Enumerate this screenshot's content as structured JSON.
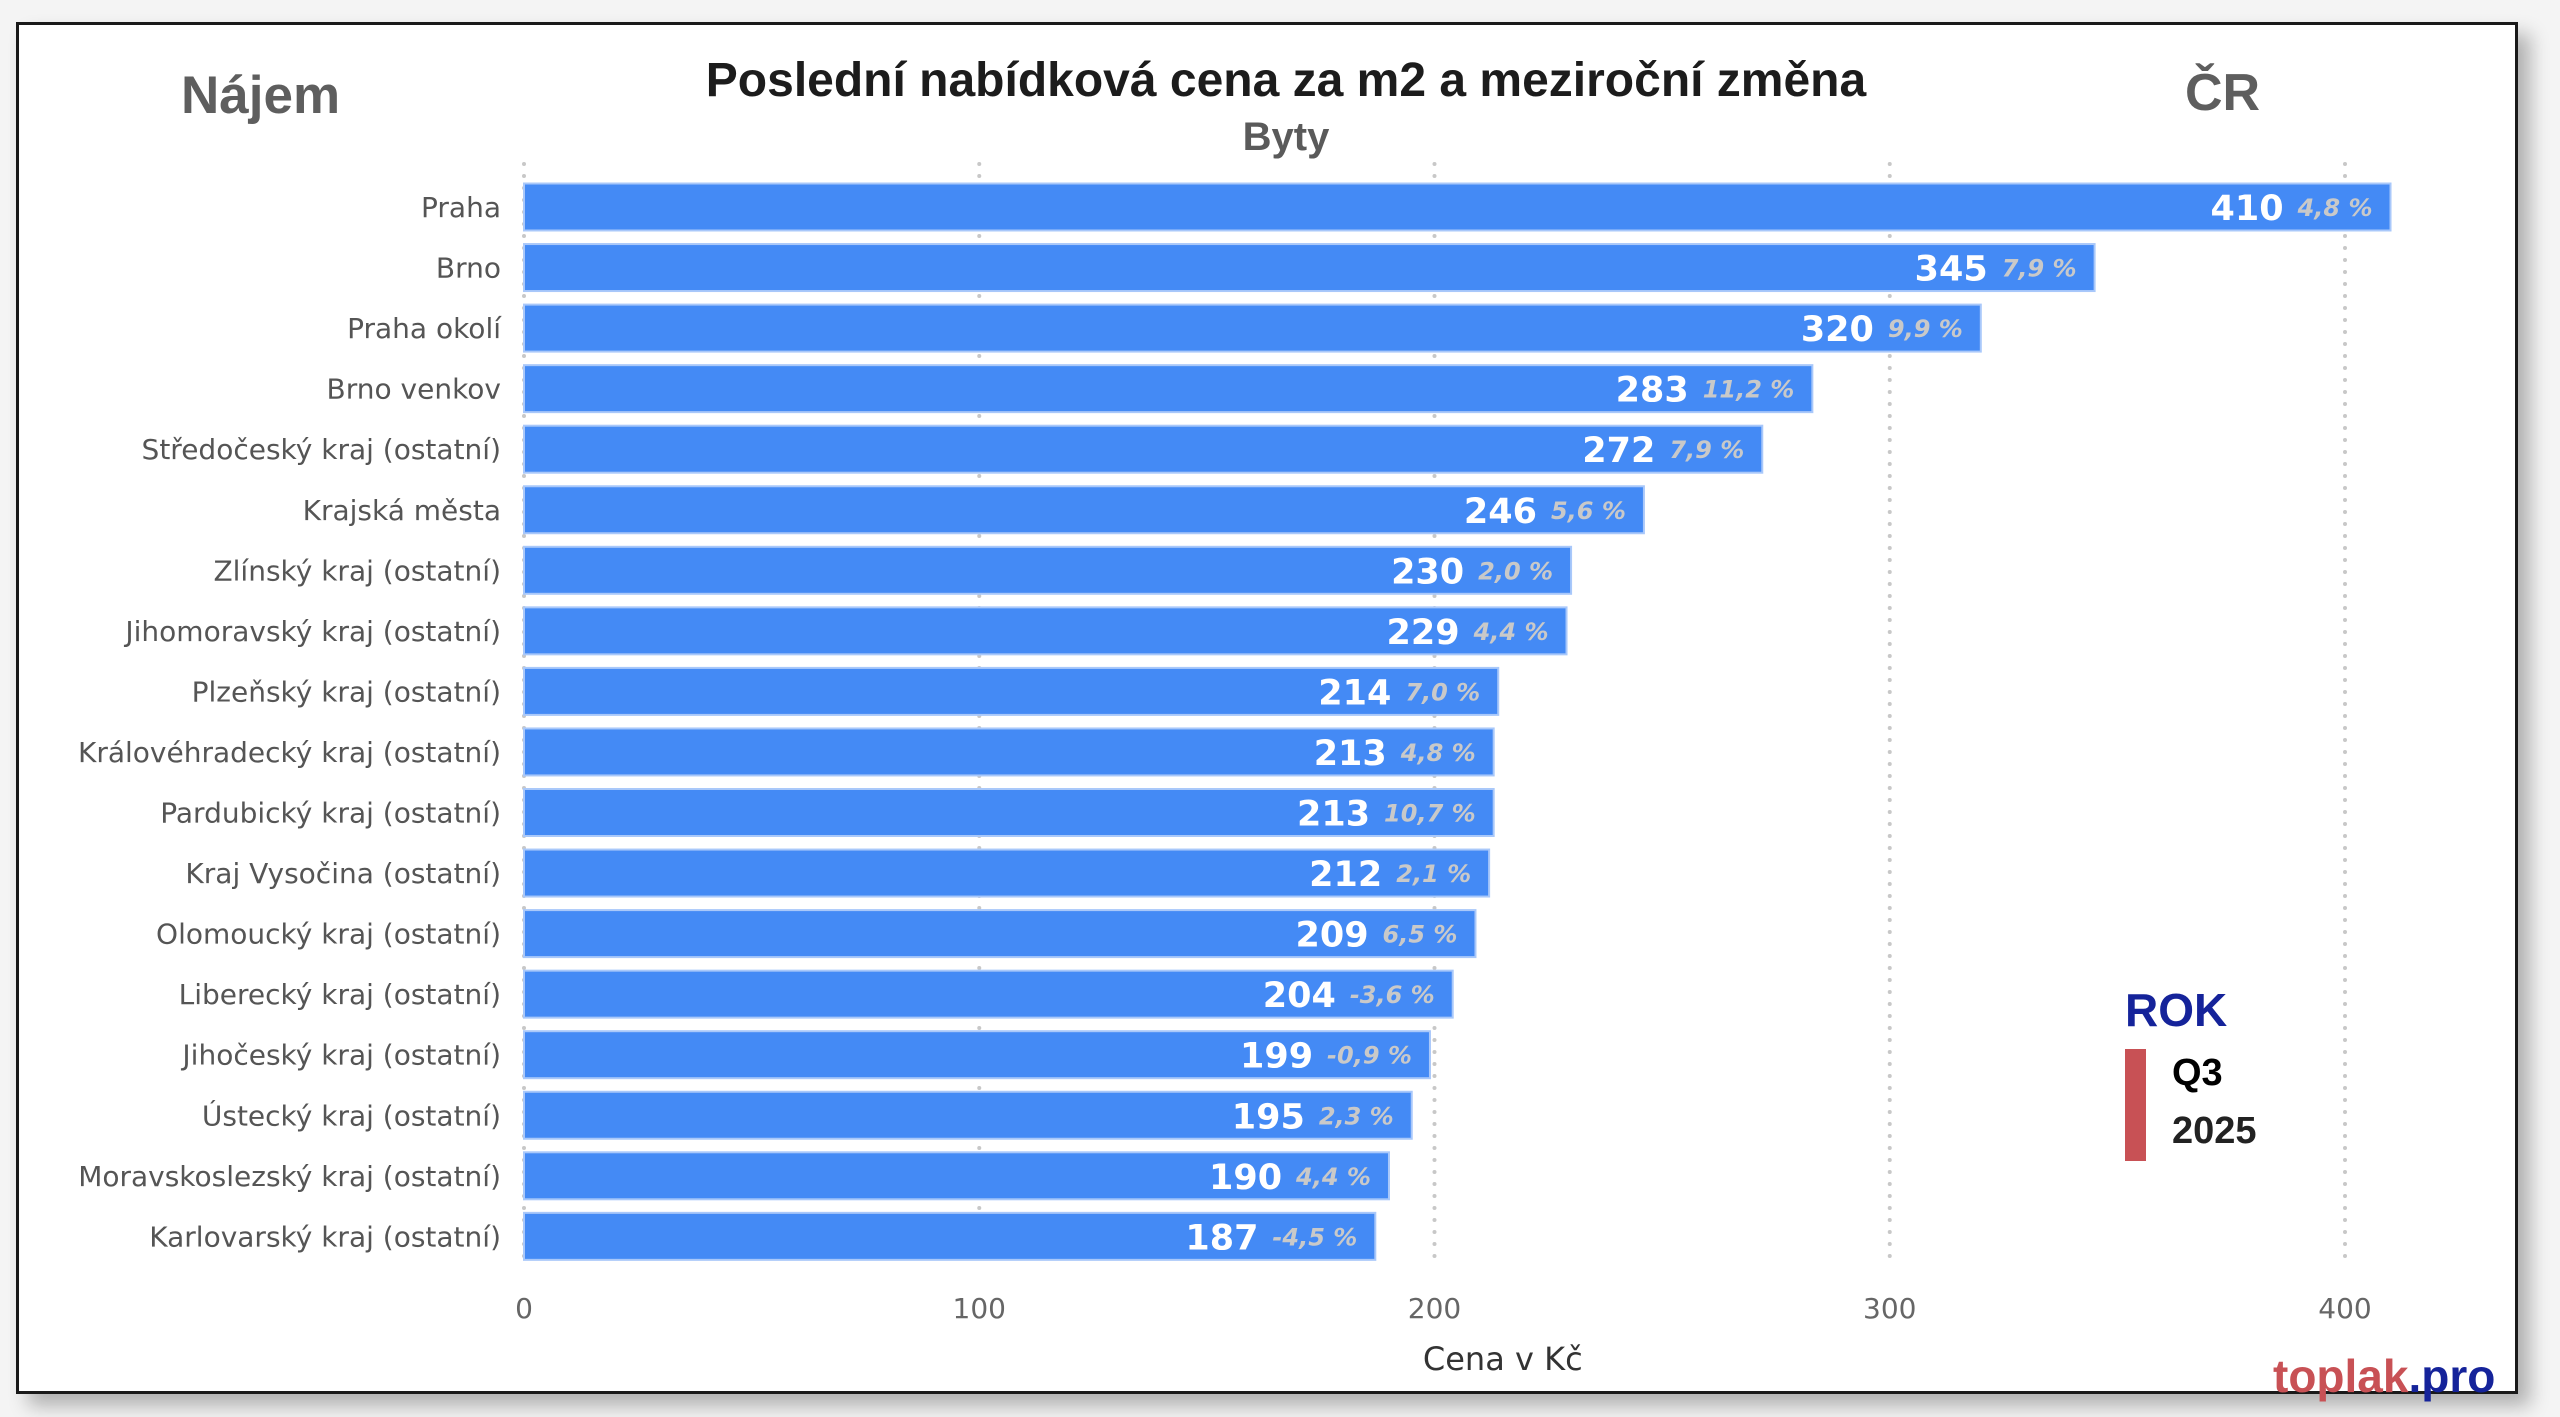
{
  "header": {
    "left_tag": "Nájem",
    "right_tag": "ČR"
  },
  "legend": {
    "title": "ROK",
    "quarter": "Q3",
    "year": "2025",
    "marker_color": "#c85155"
  },
  "brand": {
    "part1": "toplak",
    "part2": ".pro"
  },
  "chart_data": {
    "type": "bar",
    "orientation": "horizontal",
    "title": "Poslední nabídková cena za m2 a meziroční změna",
    "subtitle": "Byty",
    "xlabel": "Cena v Kč",
    "ylabel": "",
    "xlim": [
      0,
      410
    ],
    "xticks": [
      "0",
      "100",
      "200",
      "300",
      "400"
    ],
    "grid": "vertical dotted",
    "bar_color": "#448af5",
    "categories": [
      "Praha",
      "Brno",
      "Praha okolí",
      "Brno venkov",
      "Středočeský kraj (ostatní)",
      "Krajská města",
      "Zlínský kraj (ostatní)",
      "Jihomoravský kraj (ostatní)",
      "Plzeňský kraj (ostatní)",
      "Královéhradecký kraj (ostatní)",
      "Pardubický kraj (ostatní)",
      "Kraj Vysočina (ostatní)",
      "Olomoucký kraj (ostatní)",
      "Liberecký kraj (ostatní)",
      "Jihočeský kraj (ostatní)",
      "Ústecký kraj (ostatní)",
      "Moravskoslezský kraj (ostatní)",
      "Karlovarský kraj (ostatní)"
    ],
    "values": [
      410,
      345,
      320,
      283,
      272,
      246,
      230,
      229,
      214,
      213,
      213,
      212,
      209,
      204,
      199,
      195,
      190,
      187
    ],
    "changes": [
      "4,8 %",
      "7,9 %",
      "9,9 %",
      "11,2 %",
      "7,9 %",
      "5,6 %",
      "2,0 %",
      "4,4 %",
      "7,0 %",
      "4,8 %",
      "10,7 %",
      "2,1 %",
      "6,5 %",
      "-3,6 %",
      "-0,9 %",
      "2,3 %",
      "4,4 %",
      "-4,5 %"
    ]
  }
}
